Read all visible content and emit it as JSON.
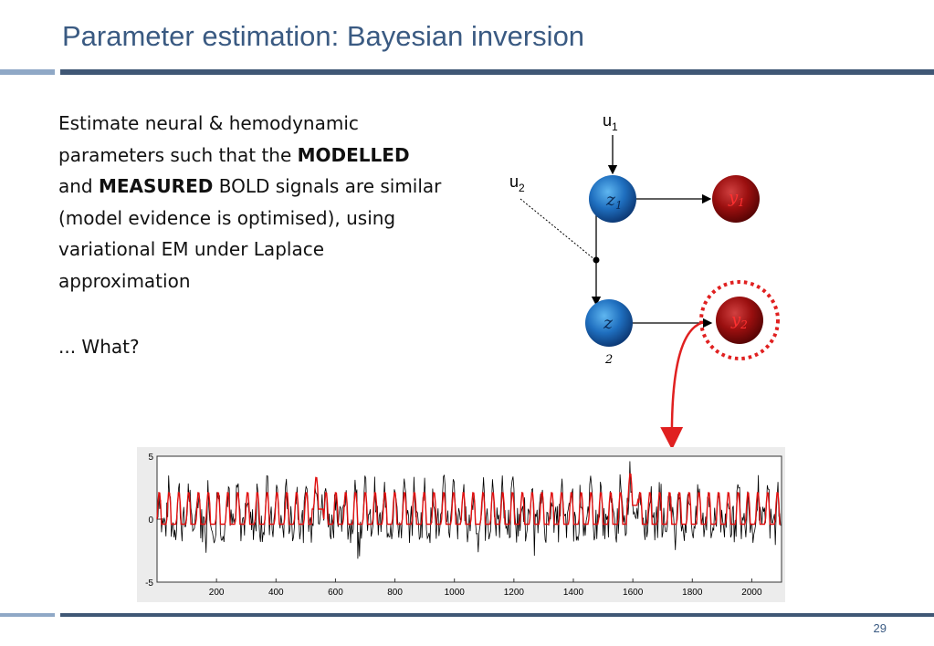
{
  "slide": {
    "title": "Parameter estimation: Bayesian inversion",
    "page_number": "29",
    "paragraph": {
      "part1": "Estimate neural &  hemodynamic parameters such that the ",
      "bold1": "MODELLED",
      "part2": " and ",
      "bold2": "MEASURED",
      "part3": " BOLD signals are similar (model evidence is optimised), using variational EM under Laplace approximation"
    },
    "question": "... What?"
  },
  "diagram": {
    "u1": "u",
    "u1_sub": "1",
    "u2": "u",
    "u2_sub": "2",
    "z1": "z",
    "z1_sub": "1",
    "z2": "z",
    "z2_sub": "2",
    "y1": "y",
    "y1_sub": "1",
    "y2": "y",
    "y2_sub": "2",
    "colors": {
      "neural_node": "#1f6fbf",
      "output_node": "#9a0f0f",
      "highlight": "#e02020"
    }
  },
  "chart_data": {
    "type": "line",
    "x_ticks": [
      "200",
      "400",
      "600",
      "800",
      "1000",
      "1200",
      "1400",
      "1600",
      "1800",
      "2000"
    ],
    "y_ticks": [
      "5",
      "0",
      "-5"
    ],
    "xlim": [
      0,
      2100
    ],
    "ylim": [
      -5,
      5
    ],
    "series": [
      {
        "color": "#000000",
        "description_role": "measured"
      },
      {
        "color": "#e01010",
        "description_role": "modelled"
      }
    ]
  }
}
